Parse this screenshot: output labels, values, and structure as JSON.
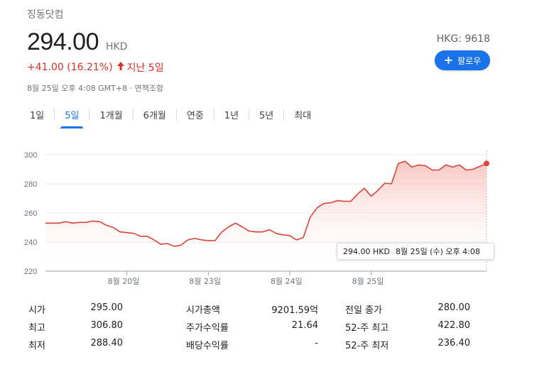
{
  "company_name": "징동닷컴",
  "price": "294.00",
  "currency": "HKD",
  "change": "+41.00 (16.21%)",
  "change_period": "지난 5일",
  "timestamp": "8월 25일 오후 4:08 GMT+8 · 면책조항",
  "ticker": "HKG: 9618",
  "follow_label": "팔로우",
  "colors": {
    "accent": "#1a73e8",
    "negative_up": "#d93025",
    "line": "#db4437"
  },
  "tabs": [
    {
      "label": "1일",
      "active": false
    },
    {
      "label": "5일",
      "active": true
    },
    {
      "label": "1개월",
      "active": false
    },
    {
      "label": "6개월",
      "active": false
    },
    {
      "label": "연중",
      "active": false
    },
    {
      "label": "1년",
      "active": false
    },
    {
      "label": "5년",
      "active": false
    },
    {
      "label": "최대",
      "active": false
    }
  ],
  "tooltip": {
    "value": "294.00 HKD",
    "time": "8월 25일 (수) 오후 4:08"
  },
  "chart_data": {
    "type": "area",
    "ylim": [
      220,
      300
    ],
    "y_ticks": [
      "300",
      "280",
      "260",
      "240",
      "220"
    ],
    "y_tick_values": [
      300,
      280,
      260,
      240,
      220
    ],
    "x_ticks": [
      {
        "label": "8월 20일",
        "index": 12
      },
      {
        "label": "8월 23일",
        "index": 24
      },
      {
        "label": "8월 24일",
        "index": 36
      },
      {
        "label": "8월 25일",
        "index": 48
      }
    ],
    "series": [
      {
        "values": [
          253,
          253,
          253,
          254,
          253,
          253.5,
          253.5,
          254.5,
          254,
          251.5,
          250,
          247,
          246.5,
          246,
          244,
          244,
          241.5,
          238.5,
          239,
          237,
          238,
          241.5,
          242.5,
          241.5,
          241,
          241,
          247,
          250.5,
          253,
          250.5,
          247.5,
          247,
          247,
          248.5,
          246,
          245,
          244.5,
          241.5,
          243,
          257,
          263.5,
          266.5,
          267,
          268.5,
          268,
          268,
          273,
          277,
          271.5,
          275.5,
          280.5,
          280,
          294,
          295.5,
          291.5,
          293,
          292.5,
          289.5,
          289.5,
          293,
          291.5,
          293,
          289.5,
          290,
          292,
          294
        ]
      }
    ],
    "previous_close": 280.0
  },
  "stats": [
    [
      {
        "label": "시가",
        "value": "295.00"
      },
      {
        "label": "시가총액",
        "value": "9201.59억"
      },
      {
        "label": "전일 종가",
        "value": "280.00"
      }
    ],
    [
      {
        "label": "최고",
        "value": "306.80"
      },
      {
        "label": "주가수익률",
        "value": "21.64"
      },
      {
        "label": "52-주 최고",
        "value": "422.80"
      }
    ],
    [
      {
        "label": "최저",
        "value": "288.40"
      },
      {
        "label": "배당수익률",
        "value": "-"
      },
      {
        "label": "52-주 최저",
        "value": "236.40"
      }
    ]
  ]
}
